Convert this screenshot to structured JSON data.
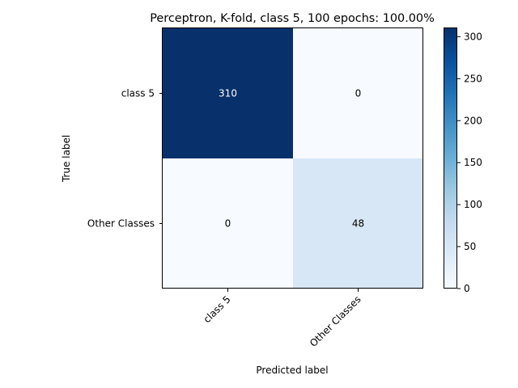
{
  "chart_data": {
    "type": "heatmap",
    "title": "Perceptron, K-fold, class 5, 100 epochs: 100.00%",
    "xlabel": "Predicted label",
    "ylabel": "True label",
    "x_categories": [
      "class 5",
      "Other Classes"
    ],
    "y_categories": [
      "class 5",
      "Other Classes"
    ],
    "values": [
      [
        310,
        0
      ],
      [
        0,
        48
      ]
    ],
    "colormap": "Blues",
    "vmin": 0,
    "vmax": 310,
    "colorbar_ticks": [
      0,
      50,
      100,
      150,
      200,
      250,
      300
    ],
    "colors": {
      "cell_max": "#08306b",
      "cell_zero": "#f7fbff",
      "cell_48": "#d7e6f5",
      "text_dark_cell": "#ffffff",
      "text_light_cell": "#000000"
    }
  }
}
